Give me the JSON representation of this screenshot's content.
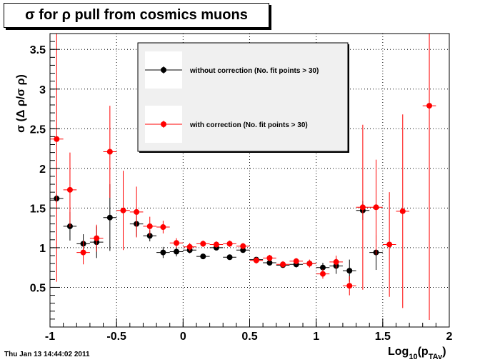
{
  "chart_data": {
    "type": "scatter",
    "title": "σ for ρ pull from cosmics muons",
    "xlabel": "Log",
    "xlabel_sub": "10",
    "xlabel_paren": "(p",
    "xlabel_sub2": "TAv",
    "xlabel_close": ")",
    "ylabel": "σ (Δ ρ/σ ρ)",
    "xlim": [
      -1,
      2
    ],
    "ylim": [
      0,
      3.7
    ],
    "x_ticks": [
      {
        "v": -1,
        "label": "-1"
      },
      {
        "v": -0.5,
        "label": "-0.5"
      },
      {
        "v": 0,
        "label": "0"
      },
      {
        "v": 0.5,
        "label": "0.5"
      },
      {
        "v": 1,
        "label": "1"
      },
      {
        "v": 1.5,
        "label": "1.5"
      },
      {
        "v": 2,
        "label": "2"
      }
    ],
    "y_ticks": [
      {
        "v": 0.5,
        "label": "0.5"
      },
      {
        "v": 1,
        "label": "1"
      },
      {
        "v": 1.5,
        "label": "1.5"
      },
      {
        "v": 2,
        "label": "2"
      },
      {
        "v": 2.5,
        "label": "2.5"
      },
      {
        "v": 3,
        "label": "3"
      },
      {
        "v": 3.5,
        "label": "3.5"
      }
    ],
    "grid": true,
    "legend_position": "top-center",
    "x_halfwidth": 0.05,
    "series": [
      {
        "name": "without correction (No. fit points > 30)",
        "color": "#000000",
        "points": [
          {
            "x": -0.95,
            "y": 1.62,
            "err": 0.05
          },
          {
            "x": -0.85,
            "y": 1.27,
            "err": 0.18
          },
          {
            "x": -0.75,
            "y": 1.05,
            "err": 0.12
          },
          {
            "x": -0.65,
            "y": 1.07,
            "err": 0.2
          },
          {
            "x": -0.55,
            "y": 1.38,
            "err": 0.42
          },
          {
            "x": -0.35,
            "y": 1.3,
            "err": 0.16
          },
          {
            "x": -0.25,
            "y": 1.15,
            "err": 0.07
          },
          {
            "x": -0.15,
            "y": 0.94,
            "err": 0.07
          },
          {
            "x": -0.05,
            "y": 0.95,
            "err": 0.06
          },
          {
            "x": 0.05,
            "y": 0.97,
            "err": 0.04
          },
          {
            "x": 0.15,
            "y": 0.89,
            "err": 0.03
          },
          {
            "x": 0.25,
            "y": 1.0,
            "err": 0.03
          },
          {
            "x": 0.35,
            "y": 0.88,
            "err": 0.03
          },
          {
            "x": 0.45,
            "y": 0.97,
            "err": 0.03
          },
          {
            "x": 0.55,
            "y": 0.85,
            "err": 0.03
          },
          {
            "x": 0.65,
            "y": 0.81,
            "err": 0.03
          },
          {
            "x": 0.75,
            "y": 0.78,
            "err": 0.03
          },
          {
            "x": 0.85,
            "y": 0.79,
            "err": 0.04
          },
          {
            "x": 0.95,
            "y": 0.8,
            "err": 0.04
          },
          {
            "x": 1.05,
            "y": 0.75,
            "err": 0.06
          },
          {
            "x": 1.15,
            "y": 0.77,
            "err": 0.1
          },
          {
            "x": 1.25,
            "y": 0.71,
            "err": 0.14
          },
          {
            "x": 1.35,
            "y": 1.47,
            "err": 0.12
          },
          {
            "x": 1.45,
            "y": 0.94,
            "err": 0.22
          }
        ]
      },
      {
        "name": "with correction (No. fit points > 30)",
        "color": "#ff0000",
        "points": [
          {
            "x": -0.95,
            "y": 2.37,
            "err": 1.8
          },
          {
            "x": -0.85,
            "y": 1.73,
            "err": 0.47
          },
          {
            "x": -0.75,
            "y": 0.94,
            "err": 0.15
          },
          {
            "x": -0.65,
            "y": 1.12,
            "err": 0.17
          },
          {
            "x": -0.55,
            "y": 2.21,
            "err": 0.58
          },
          {
            "x": -0.45,
            "y": 1.47,
            "err": 0.5
          },
          {
            "x": -0.35,
            "y": 1.45,
            "err": 0.32
          },
          {
            "x": -0.25,
            "y": 1.27,
            "err": 0.12
          },
          {
            "x": -0.15,
            "y": 1.26,
            "err": 0.08
          },
          {
            "x": -0.05,
            "y": 1.06,
            "err": 0.06
          },
          {
            "x": 0.05,
            "y": 1.01,
            "err": 0.05
          },
          {
            "x": 0.15,
            "y": 1.05,
            "err": 0.04
          },
          {
            "x": 0.25,
            "y": 1.04,
            "err": 0.04
          },
          {
            "x": 0.35,
            "y": 1.05,
            "err": 0.04
          },
          {
            "x": 0.45,
            "y": 1.02,
            "err": 0.04
          },
          {
            "x": 0.55,
            "y": 0.84,
            "err": 0.04
          },
          {
            "x": 0.65,
            "y": 0.87,
            "err": 0.04
          },
          {
            "x": 0.75,
            "y": 0.79,
            "err": 0.04
          },
          {
            "x": 0.85,
            "y": 0.83,
            "err": 0.04
          },
          {
            "x": 0.95,
            "y": 0.8,
            "err": 0.05
          },
          {
            "x": 1.05,
            "y": 0.67,
            "err": 0.06
          },
          {
            "x": 1.15,
            "y": 0.82,
            "err": 0.08
          },
          {
            "x": 1.25,
            "y": 0.52,
            "err": 0.12
          },
          {
            "x": 1.35,
            "y": 1.51,
            "err": 1.04
          },
          {
            "x": 1.45,
            "y": 1.51,
            "err": 0.6
          },
          {
            "x": 1.55,
            "y": 1.04,
            "err": 0.66
          },
          {
            "x": 1.65,
            "y": 1.46,
            "err": 1.22
          },
          {
            "x": 1.85,
            "y": 2.79,
            "err": 2.7
          }
        ]
      }
    ]
  },
  "footer": {
    "timestamp": "Thu Jan 13 14:44:02 2011"
  }
}
